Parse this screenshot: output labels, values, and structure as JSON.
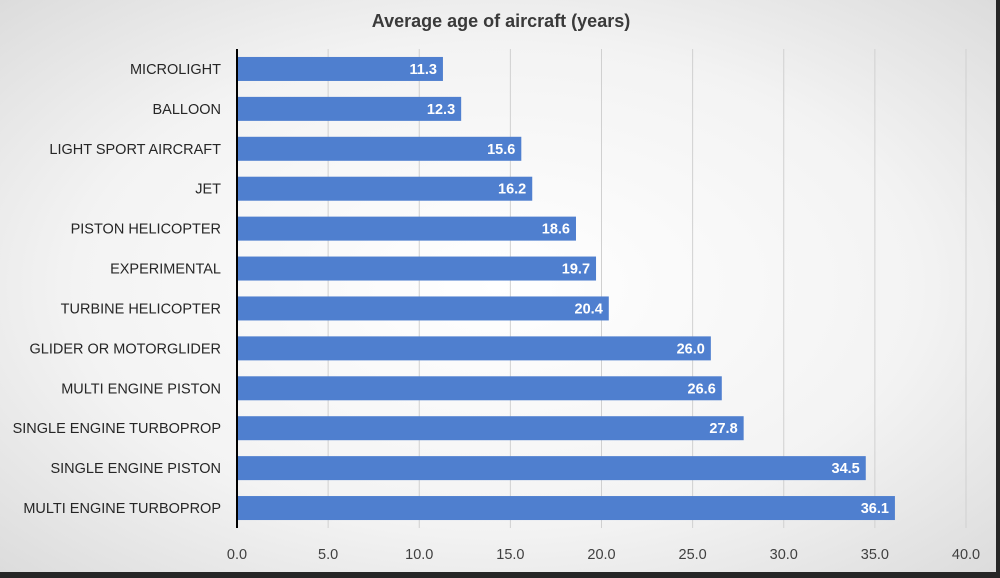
{
  "chart_data": {
    "type": "bar",
    "orientation": "horizontal",
    "title": "Average age of aircraft (years)",
    "xlabel": "",
    "ylabel": "",
    "categories": [
      "MICROLIGHT",
      "BALLOON",
      "LIGHT SPORT AIRCRAFT",
      "JET",
      "PISTON HELICOPTER",
      "EXPERIMENTAL",
      "TURBINE HELICOPTER",
      "GLIDER OR MOTORGLIDER",
      "MULTI ENGINE PISTON",
      "SINGLE ENGINE TURBOPROP",
      "SINGLE ENGINE PISTON",
      "MULTI ENGINE TURBOPROP"
    ],
    "values": [
      11.3,
      12.3,
      15.6,
      16.2,
      18.6,
      19.7,
      20.4,
      26.0,
      26.6,
      27.8,
      34.5,
      36.1
    ],
    "data_labels": [
      "11.3",
      "12.3",
      "15.6",
      "16.2",
      "18.6",
      "19.7",
      "20.4",
      "26.0",
      "26.6",
      "27.8",
      "34.5",
      "36.1"
    ],
    "xlim": [
      0,
      40
    ],
    "x_ticks": [
      0,
      5,
      10,
      15,
      20,
      25,
      30,
      35,
      40
    ],
    "x_tick_labels": [
      "0.0",
      "5.0",
      "10.0",
      "15.0",
      "20.0",
      "25.0",
      "30.0",
      "35.0",
      "40.0"
    ],
    "grid": "vertical",
    "legend": "none",
    "bar_color": "#4f7fcf"
  }
}
